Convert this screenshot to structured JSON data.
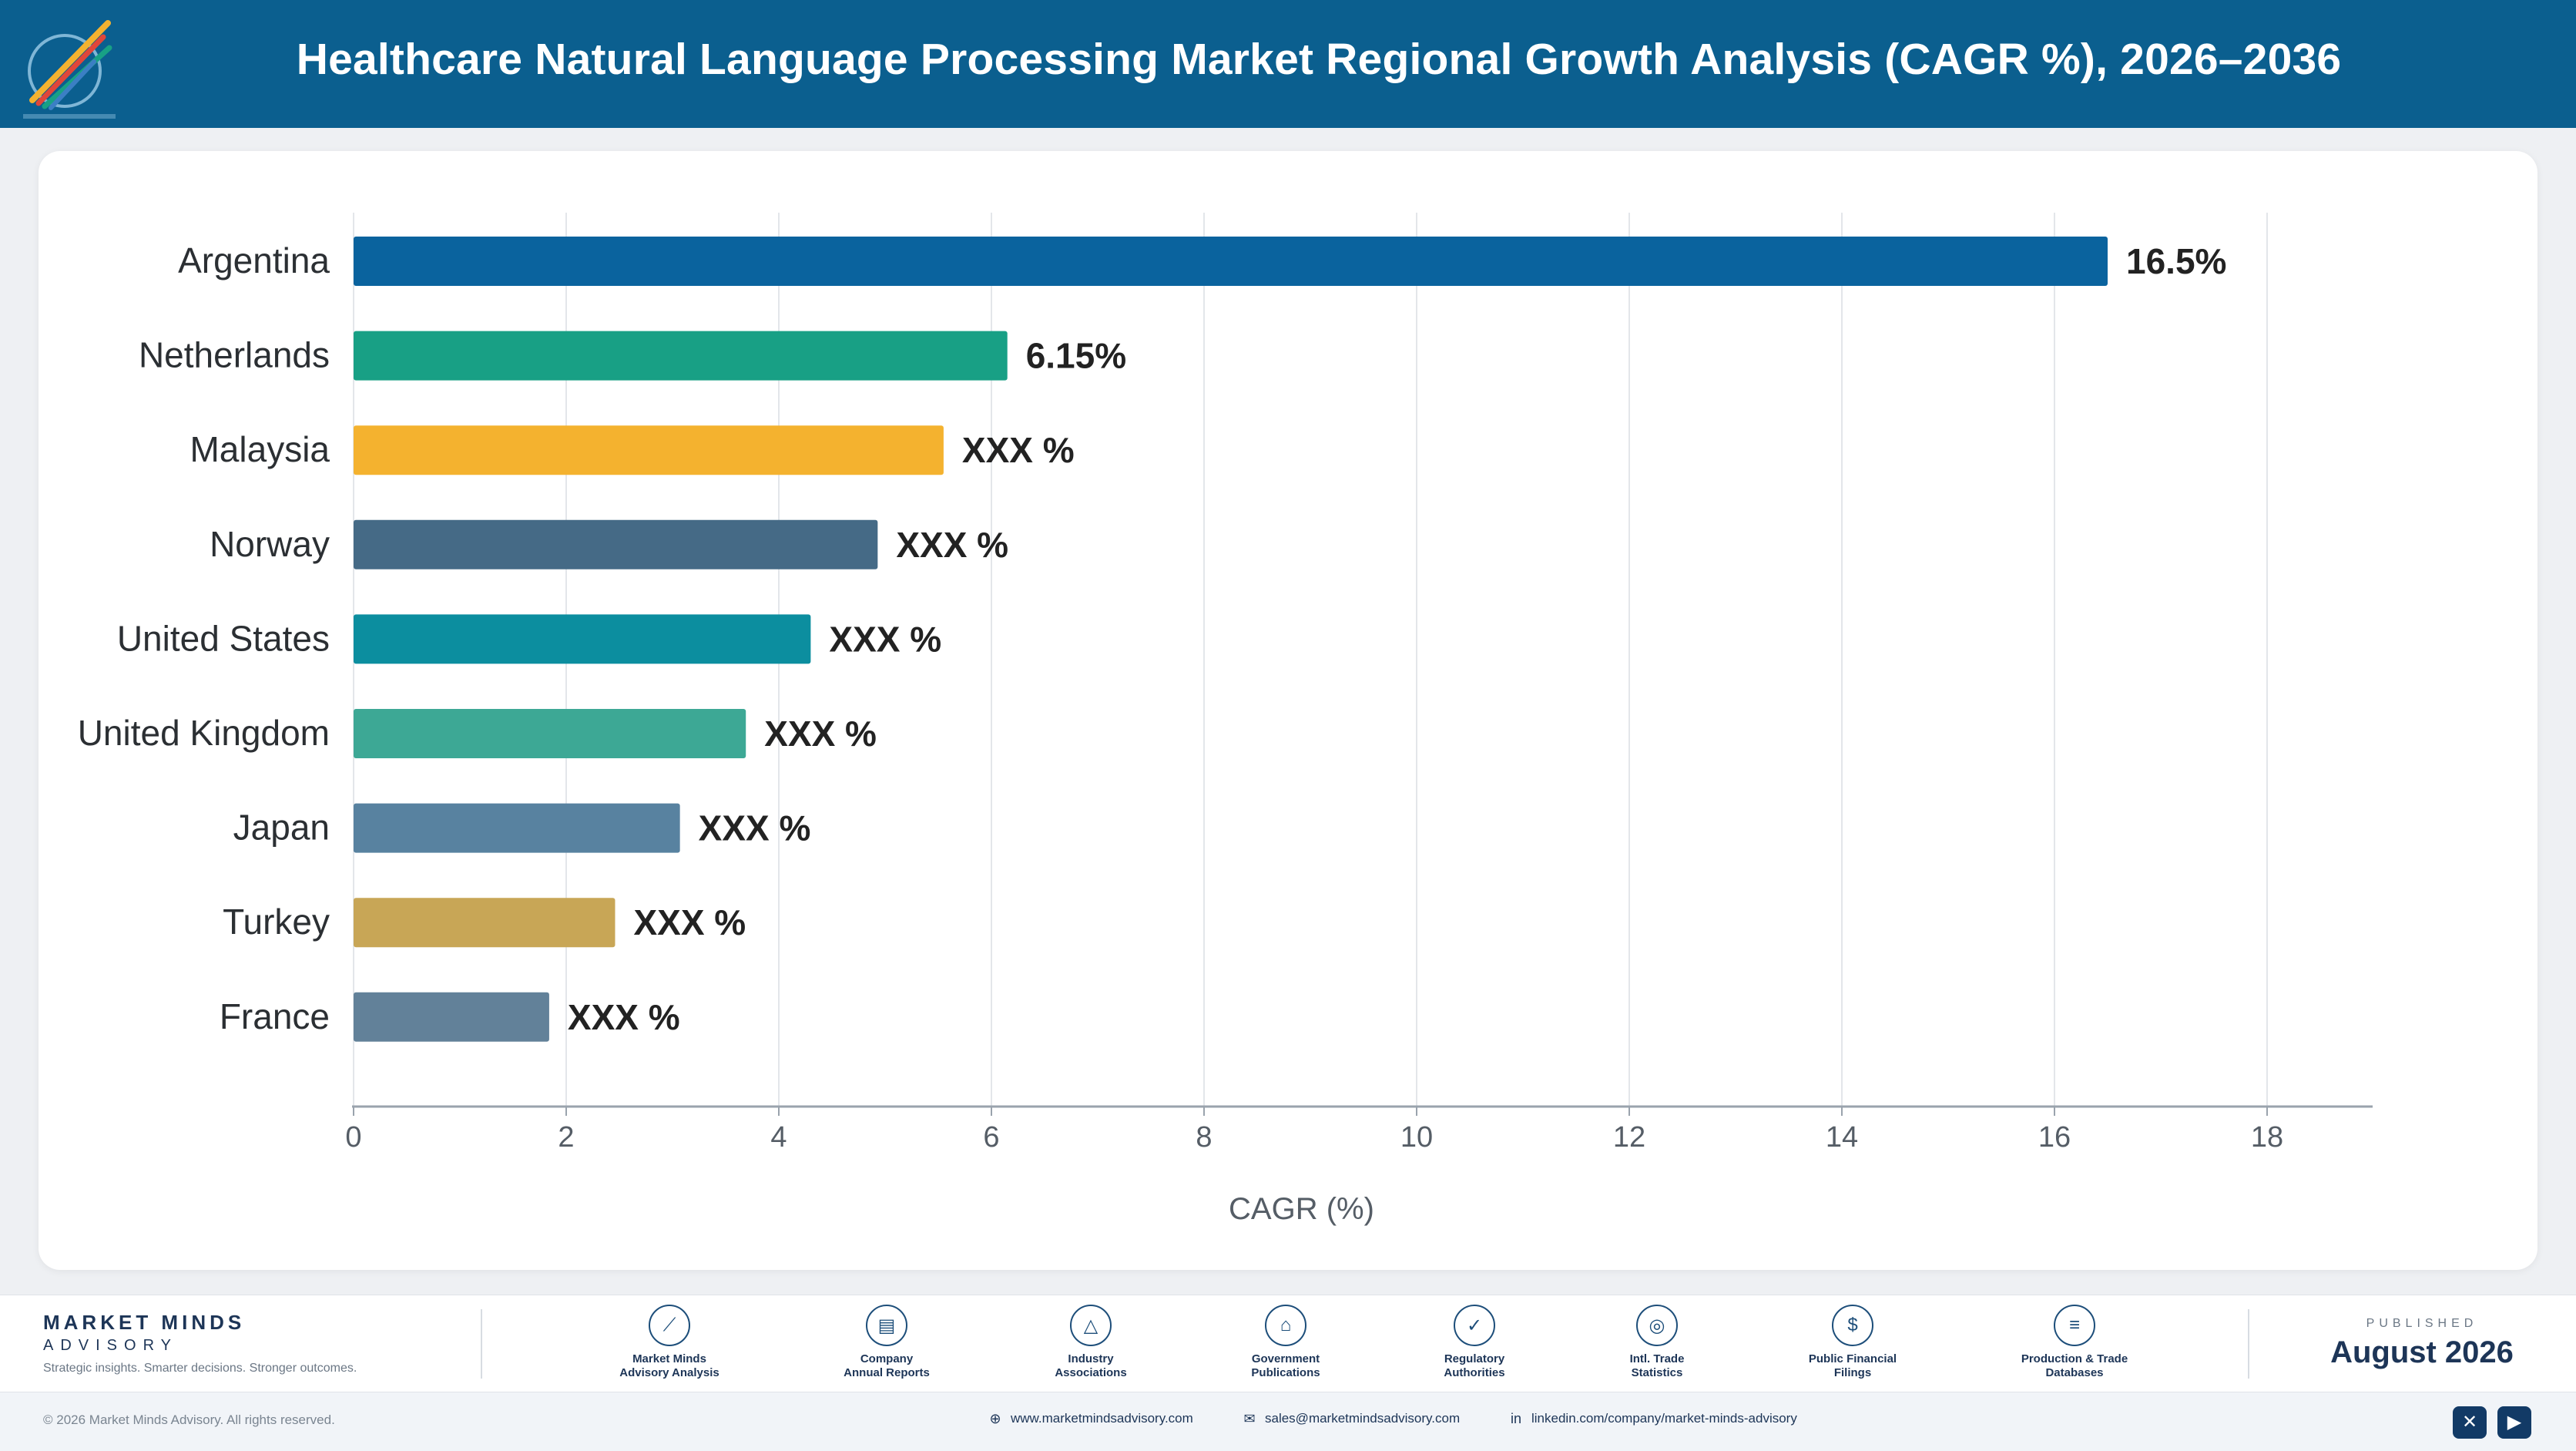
{
  "header": {
    "title": "Healthcare Natural Language Processing Market Regional Growth Analysis (CAGR %), 2026–2036",
    "logo_icon": "pencils-logo-icon"
  },
  "colors": {
    "header_bg": "#0b5f8f",
    "axis": "#9aa3ad",
    "grid": "#e3e6ea"
  },
  "chart_data": {
    "type": "bar",
    "orientation": "horizontal",
    "categories": [
      "Argentina",
      "Netherlands",
      "Malaysia",
      "Norway",
      "United States",
      "United Kingdom",
      "Japan",
      "Turkey",
      "France"
    ],
    "values": [
      16.5,
      6.15,
      5.55,
      4.93,
      4.3,
      3.69,
      3.07,
      2.46,
      1.84
    ],
    "value_labels": [
      "16.5%",
      "6.15%",
      "XXX %",
      "XXX %",
      "XXX %",
      "XXX %",
      "XXX %",
      "XXX %",
      "XXX %"
    ],
    "bar_colors": [
      "#0a639e",
      "#18a085",
      "#f4b22f",
      "#456a86",
      "#0c8e9f",
      "#3da895",
      "#5882a0",
      "#c8a656",
      "#628199"
    ],
    "xlabel": "CAGR (%)",
    "ylabel": "",
    "xlim": [
      0,
      19
    ],
    "xticks": [
      0,
      2,
      4,
      6,
      8,
      10,
      12,
      14,
      16,
      18
    ],
    "grid": "vertical"
  },
  "footer": {
    "brand_name": "MARKET MINDS",
    "brand_sub": "ADVISORY",
    "brand_tagline": "Strategic insights. Smarter decisions. Stronger outcomes.",
    "sources": [
      {
        "label": "Market Minds\nAdvisory Analysis",
        "icon": "chart-line-icon",
        "glyph": "⟋"
      },
      {
        "label": "Company\nAnnual Reports",
        "icon": "document-icon",
        "glyph": "▤"
      },
      {
        "label": "Industry\nAssociations",
        "icon": "network-icon",
        "glyph": "△"
      },
      {
        "label": "Government\nPublications",
        "icon": "government-building-icon",
        "glyph": "⌂"
      },
      {
        "label": "Regulatory\nAuthorities",
        "icon": "shield-check-icon",
        "glyph": "✓"
      },
      {
        "label": "Intl. Trade\nStatistics",
        "icon": "globe-icon",
        "glyph": "◎"
      },
      {
        "label": "Public Financial\nFilings",
        "icon": "dollar-circle-icon",
        "glyph": "$"
      },
      {
        "label": "Production & Trade\nDatabases",
        "icon": "database-icon",
        "glyph": "≡"
      }
    ],
    "published_label": "PUBLISHED",
    "published_date": "August 2026",
    "copyright": "© 2026 Market Minds Advisory. All rights reserved.",
    "website": "www.marketmindsadvisory.com",
    "email": "sales@marketmindsadvisory.com",
    "linkedin": "linkedin.com/company/market-minds-advisory",
    "social": [
      {
        "icon": "x-twitter-icon",
        "glyph": "✕"
      },
      {
        "icon": "youtube-icon",
        "glyph": "▶"
      }
    ]
  }
}
